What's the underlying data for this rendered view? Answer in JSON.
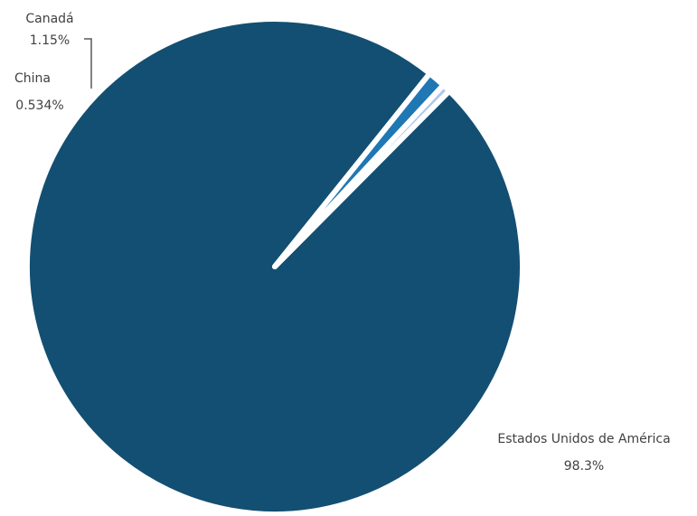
{
  "chart_data": {
    "type": "pie",
    "slices": [
      {
        "label": "Estados Unidos de América",
        "value": 98.3,
        "display": "98.3%",
        "color": "#134f72"
      },
      {
        "label": "Canadá",
        "value": 1.15,
        "display": "1.15%",
        "color": "#1f77b4"
      },
      {
        "label": "China",
        "value": 0.534,
        "display": "0.534%",
        "color": "#aec7e8"
      }
    ],
    "legend": "none",
    "title": ""
  }
}
